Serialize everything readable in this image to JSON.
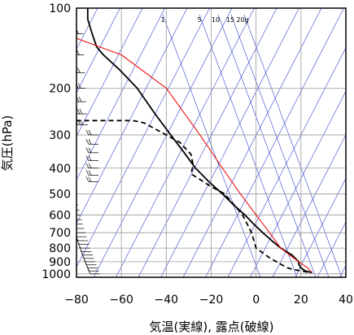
{
  "chart_data": {
    "type": "line",
    "xlabel": "気温(実線), 露点(破線)",
    "ylabel": "気圧(hPa)",
    "x_ticks": [
      "−80",
      "−60",
      "−40",
      "−20",
      "0",
      "20",
      "40"
    ],
    "y_ticks": [
      "100",
      "200",
      "300",
      "400",
      "500",
      "600",
      "700",
      "800",
      "900",
      "1000"
    ],
    "xlim": [
      -80,
      40
    ],
    "ylim": [
      1030,
      100
    ],
    "y_scale": "log",
    "mixing_ratio_labels": [
      "1",
      "5",
      "10",
      "15",
      "20g"
    ],
    "colors": {
      "temperature": "#000000",
      "dewpoint": "#000000",
      "parcel": "#ee1111",
      "dry_adiabats": "#3344cc",
      "frame": "#000000",
      "grid": "#999999"
    },
    "series": [
      {
        "style": "solid",
        "color": "#000000",
        "points": [
          [
            25,
            990
          ],
          [
            22,
            975
          ],
          [
            20,
            950
          ],
          [
            19,
            920
          ],
          [
            19,
            900
          ],
          [
            16,
            850
          ],
          [
            11,
            800
          ],
          [
            7,
            750
          ],
          [
            3,
            700
          ],
          [
            -1,
            650
          ],
          [
            -5,
            600
          ],
          [
            -10,
            550
          ],
          [
            -15,
            500
          ],
          [
            -21,
            450
          ],
          [
            -27,
            400
          ],
          [
            -32,
            350
          ],
          [
            -38,
            300
          ],
          [
            -45,
            250
          ],
          [
            -53,
            200
          ],
          [
            -61,
            170
          ],
          [
            -68,
            150
          ],
          [
            -71,
            140
          ],
          [
            -73,
            125
          ],
          [
            -75,
            110
          ],
          [
            -75,
            100
          ]
        ]
      },
      {
        "style": "dashed",
        "color": "#000000",
        "points": [
          [
            23,
            985
          ],
          [
            20,
            975
          ],
          [
            16,
            960
          ],
          [
            14,
            950
          ],
          [
            12,
            930
          ],
          [
            6,
            870
          ],
          [
            0,
            800
          ],
          [
            -2,
            700
          ],
          [
            -6,
            600
          ],
          [
            -14,
            500
          ],
          [
            -20,
            470
          ],
          [
            -29,
            420
          ],
          [
            -28,
            390
          ],
          [
            -29,
            355
          ],
          [
            -34,
            320
          ],
          [
            -50,
            270
          ],
          [
            -55,
            265
          ],
          [
            -80,
            265
          ]
        ]
      },
      {
        "style": "solid",
        "color": "#ee1111",
        "points": [
          [
            25,
            990
          ],
          [
            23,
            950
          ],
          [
            19,
            900
          ],
          [
            15,
            850
          ],
          [
            11,
            800
          ],
          [
            6,
            700
          ],
          [
            0,
            600
          ],
          [
            -7,
            500
          ],
          [
            -15,
            400
          ],
          [
            -25,
            300
          ],
          [
            -40,
            200
          ],
          [
            -60,
            150
          ],
          [
            -80,
            130
          ]
        ]
      }
    ]
  }
}
